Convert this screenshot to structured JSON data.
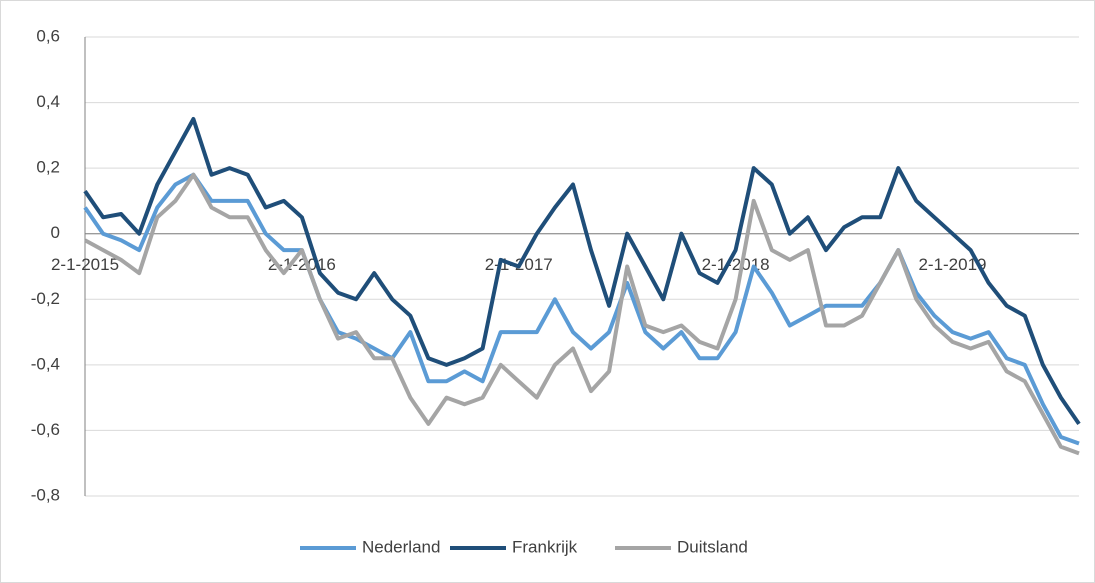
{
  "chart_data": {
    "type": "line",
    "categories": [
      "2-1-2015",
      null,
      null,
      null,
      null,
      null,
      null,
      null,
      null,
      null,
      null,
      null,
      "2-1-2016",
      null,
      null,
      null,
      null,
      null,
      null,
      null,
      null,
      null,
      null,
      null,
      "2-1-2017",
      null,
      null,
      null,
      null,
      null,
      null,
      null,
      null,
      null,
      null,
      null,
      "2-1-2018",
      null,
      null,
      null,
      null,
      null,
      null,
      null,
      null,
      null,
      null,
      null,
      "2-1-2019",
      null,
      null,
      null,
      null,
      null,
      null,
      null
    ],
    "series": [
      {
        "name": "Nederland",
        "color": "#5b9bd5",
        "values": [
          0.08,
          0.0,
          -0.02,
          -0.05,
          0.08,
          0.15,
          0.18,
          0.1,
          0.1,
          0.1,
          0.0,
          -0.05,
          -0.05,
          -0.2,
          -0.3,
          -0.32,
          -0.35,
          -0.38,
          -0.3,
          -0.45,
          -0.45,
          -0.42,
          -0.45,
          -0.3,
          -0.3,
          -0.3,
          -0.2,
          -0.3,
          -0.35,
          -0.3,
          -0.15,
          -0.3,
          -0.35,
          -0.3,
          -0.38,
          -0.38,
          -0.3,
          -0.1,
          -0.18,
          -0.28,
          -0.25,
          -0.22,
          -0.22,
          -0.22,
          -0.15,
          -0.05,
          -0.18,
          -0.25,
          -0.3,
          -0.32,
          -0.3,
          -0.38,
          -0.4,
          -0.52,
          -0.62,
          -0.64
        ]
      },
      {
        "name": "Frankrijk",
        "color": "#1f4e79",
        "values": [
          0.13,
          0.05,
          0.06,
          0.0,
          0.15,
          0.25,
          0.35,
          0.18,
          0.2,
          0.18,
          0.08,
          0.1,
          0.05,
          -0.12,
          -0.18,
          -0.2,
          -0.12,
          -0.2,
          -0.25,
          -0.38,
          -0.4,
          -0.38,
          -0.35,
          -0.08,
          -0.1,
          0.0,
          0.08,
          0.15,
          -0.05,
          -0.22,
          0.0,
          -0.1,
          -0.2,
          0.0,
          -0.12,
          -0.15,
          -0.05,
          0.2,
          0.15,
          0.0,
          0.05,
          -0.05,
          0.02,
          0.05,
          0.05,
          0.2,
          0.1,
          0.05,
          0.0,
          -0.05,
          -0.15,
          -0.22,
          -0.25,
          -0.4,
          -0.5,
          -0.58
        ]
      },
      {
        "name": "Duitsland",
        "color": "#a5a5a5",
        "values": [
          -0.02,
          -0.05,
          -0.08,
          -0.12,
          0.05,
          0.1,
          0.18,
          0.08,
          0.05,
          0.05,
          -0.05,
          -0.12,
          -0.05,
          -0.2,
          -0.32,
          -0.3,
          -0.38,
          -0.38,
          -0.5,
          -0.58,
          -0.5,
          -0.52,
          -0.5,
          -0.4,
          -0.45,
          -0.5,
          -0.4,
          -0.35,
          -0.48,
          -0.42,
          -0.1,
          -0.28,
          -0.3,
          -0.28,
          -0.33,
          -0.35,
          -0.2,
          0.1,
          -0.05,
          -0.08,
          -0.05,
          -0.28,
          -0.28,
          -0.25,
          -0.15,
          -0.05,
          -0.2,
          -0.28,
          -0.33,
          -0.35,
          -0.33,
          -0.42,
          -0.45,
          -0.55,
          -0.65,
          -0.67
        ]
      }
    ],
    "ylim": [
      -0.8,
      0.6
    ],
    "yticks": [
      {
        "value": -0.8,
        "label": "-0,8"
      },
      {
        "value": -0.6,
        "label": "-0,6"
      },
      {
        "value": -0.4,
        "label": "-0,4"
      },
      {
        "value": -0.2,
        "label": "-0,2"
      },
      0,
      {
        "value": 0.2,
        "label": "0,2"
      },
      {
        "value": 0.4,
        "label": "0,4"
      },
      {
        "value": 0.6,
        "label": "0,6"
      }
    ],
    "grid": true,
    "legend": "bottom"
  }
}
